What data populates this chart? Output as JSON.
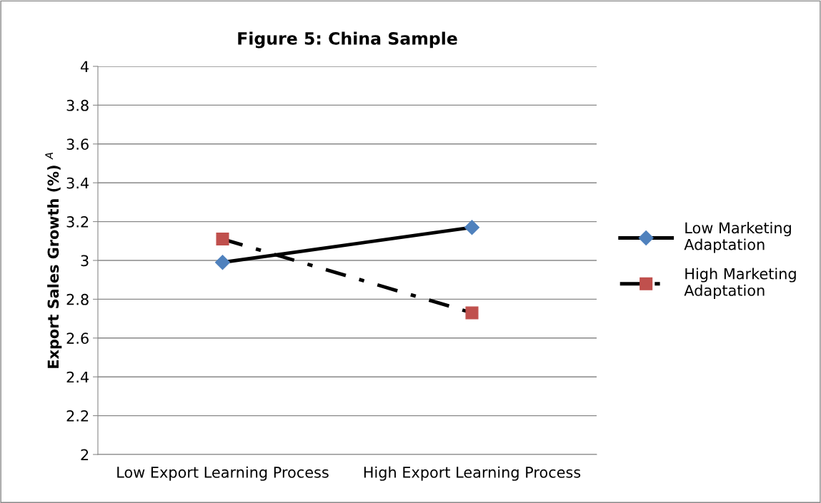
{
  "chart_data": {
    "type": "line",
    "title": "Figure 5: China Sample",
    "ylabel": "Export Sales Growth (%) $^{A}$",
    "categories": [
      "Low Export Learning Process",
      "High Export Learning Process"
    ],
    "series": [
      {
        "name": "Low Marketing Adaptation",
        "color": "#4f81bd",
        "values": [
          2.99,
          3.17
        ],
        "marker": "diamond",
        "line_style": "solid"
      },
      {
        "name": "High Marketing Adaptation",
        "color": "#c0504d",
        "values": [
          3.11,
          2.73
        ],
        "marker": "square",
        "line_style": "dashed"
      }
    ],
    "ylim": [
      2,
      4
    ],
    "yticks": [
      2,
      2.2,
      2.4,
      2.6,
      2.8,
      3,
      3.2,
      3.4,
      3.6,
      3.8,
      4
    ],
    "grid": "y",
    "legend": "right"
  }
}
